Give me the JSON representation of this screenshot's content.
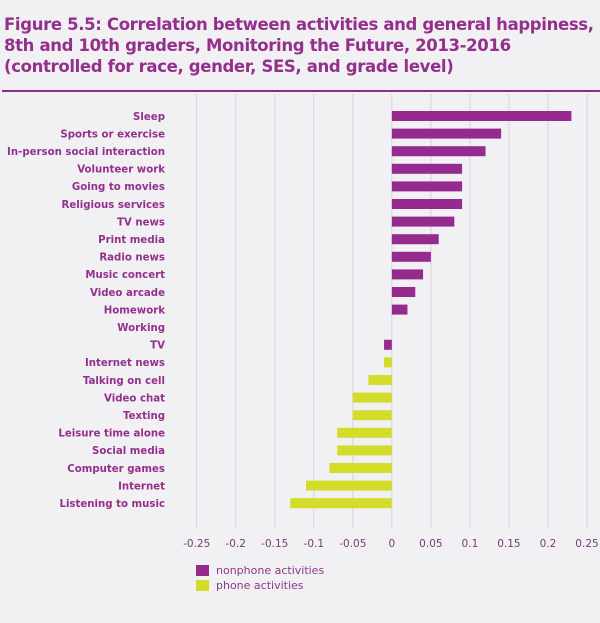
{
  "chart_data": {
    "type": "bar",
    "orientation": "horizontal",
    "title": [
      "Figure 5.5: Correlation between activities and general happiness,",
      "8th and 10th graders, Monitoring the Future, 2013-2016",
      "(controlled for race, gender, SES, and grade level)"
    ],
    "xlabel": "",
    "ylabel": "",
    "xlim": [
      -0.25,
      0.25
    ],
    "xticks": [
      -0.25,
      -0.2,
      -0.15,
      -0.1,
      -0.05,
      0,
      0.05,
      0.1,
      0.15,
      0.2,
      0.25
    ],
    "xtick_labels": [
      "-0.25",
      "-0.2",
      "-0.15",
      "-0.1",
      "-0.05",
      "0",
      "0.05",
      "0.1",
      "0.15",
      "0.2",
      "0.25"
    ],
    "grid": "vertical",
    "legend_position": "bottom-left",
    "series": [
      {
        "name": "nonphone activities",
        "color": "#952a8f"
      },
      {
        "name": "phone activities",
        "color": "#d4dc2a"
      }
    ],
    "categories": [
      "Sleep",
      "Sports or exercise",
      "In-person social interaction",
      "Volunteer work",
      "Going to movies",
      "Religious services",
      "TV news",
      "Print media",
      "Radio news",
      "Music concert",
      "Video arcade",
      "Homework",
      "Working",
      "TV",
      "Internet news",
      "Talking on cell",
      "Video chat",
      "Texting",
      "Leisure time alone",
      "Social media",
      "Computer games",
      "Internet",
      "Listening to music"
    ],
    "values": [
      0.23,
      0.14,
      0.12,
      0.09,
      0.09,
      0.09,
      0.08,
      0.06,
      0.05,
      0.04,
      0.03,
      0.02,
      0,
      -0.01,
      -0.01,
      -0.03,
      -0.05,
      -0.05,
      -0.07,
      -0.07,
      -0.08,
      -0.11,
      -0.13
    ],
    "series_index": [
      0,
      0,
      0,
      0,
      0,
      0,
      0,
      0,
      0,
      0,
      0,
      0,
      0,
      0,
      1,
      1,
      1,
      1,
      1,
      1,
      1,
      1,
      1
    ]
  }
}
